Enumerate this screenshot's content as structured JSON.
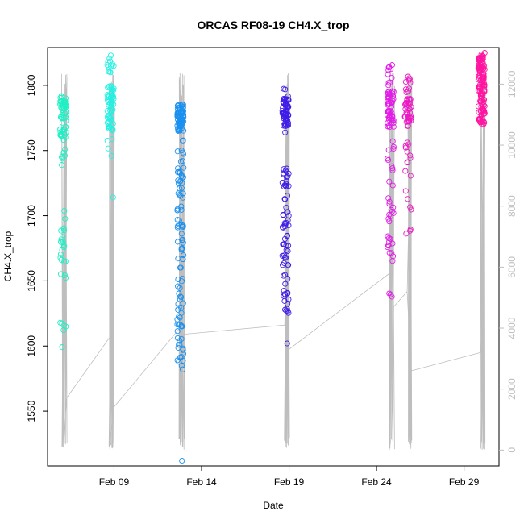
{
  "chart_data": {
    "type": "scatter",
    "title": "ORCAS RF08-19 CH4.X_trop",
    "xlabel": "Date",
    "ylabel": "CH4.X_trop",
    "x_ticks": [
      "Feb 09",
      "Feb 14",
      "Feb 19",
      "Feb 24",
      "Feb 29"
    ],
    "x_tick_days": [
      9,
      14,
      19,
      24,
      29
    ],
    "xlim_days": [
      5.2,
      31.0
    ],
    "y_ticks": [
      1550,
      1600,
      1650,
      1700,
      1750,
      1800
    ],
    "ylim": [
      1508,
      1829
    ],
    "y2_ticks": [
      0,
      2000,
      4000,
      6000,
      8000,
      10000,
      12000
    ],
    "y2lim": [
      -520,
      13200
    ],
    "y2_color": "#bebebe",
    "grid": false,
    "legend": "none",
    "series": [
      {
        "day": 6.1,
        "color": "#1ff0c4",
        "clusters": [
          [
            1760,
            1792,
            60
          ],
          [
            1730,
            1760,
            8
          ],
          [
            1660,
            1710,
            18
          ],
          [
            1645,
            1660,
            3
          ],
          [
            1597,
            1618,
            6
          ]
        ]
      },
      {
        "day": 8.8,
        "color": "#1ff2e3",
        "clusters": [
          [
            1765,
            1800,
            55
          ],
          [
            1808,
            1823,
            12
          ],
          [
            1745,
            1760,
            4
          ],
          [
            1714,
            1718,
            1
          ]
        ]
      },
      {
        "day": 12.8,
        "color": "#1a90f0",
        "clusters": [
          [
            1765,
            1786,
            80
          ],
          [
            1690,
            1760,
            45
          ],
          [
            1630,
            1690,
            25
          ],
          [
            1580,
            1630,
            30
          ],
          [
            1512,
            1516,
            1
          ]
        ]
      },
      {
        "day": 18.8,
        "color": "#3f1ce8",
        "clusters": [
          [
            1768,
            1790,
            55
          ],
          [
            1760,
            1798,
            10
          ],
          [
            1700,
            1740,
            25
          ],
          [
            1625,
            1700,
            45
          ],
          [
            1602,
            1606,
            1
          ]
        ]
      },
      {
        "day": 24.8,
        "color": "#e21ce6",
        "clusters": [
          [
            1768,
            1796,
            55
          ],
          [
            1798,
            1817,
            10
          ],
          [
            1690,
            1760,
            22
          ],
          [
            1665,
            1690,
            12
          ],
          [
            1633,
            1642,
            3
          ]
        ]
      },
      {
        "day": 25.8,
        "color": "#ec19c4",
        "clusters": [
          [
            1768,
            1790,
            40
          ],
          [
            1792,
            1808,
            10
          ],
          [
            1700,
            1760,
            15
          ],
          [
            1677,
            1690,
            3
          ]
        ]
      },
      {
        "day": 30.0,
        "color": "#ff14a0",
        "clusters": [
          [
            1770,
            1826,
            130
          ]
        ]
      }
    ],
    "altitude_series": {
      "axis": "right",
      "color": "#bebebe",
      "legs": [
        {
          "day": 6.1,
          "start": 1700,
          "end": 1700
        },
        {
          "day": 8.8,
          "start": 3700,
          "end": 1400
        },
        {
          "day": 12.8,
          "start": 4000,
          "end": 3800
        },
        {
          "day": 18.8,
          "start": 4100,
          "end": 3300
        },
        {
          "day": 24.8,
          "start": 5800,
          "end": 4700
        },
        {
          "day": 25.8,
          "start": 5200,
          "end": 2600
        },
        {
          "day": 30.0,
          "start": 3200,
          "end": 3200
        }
      ]
    }
  }
}
